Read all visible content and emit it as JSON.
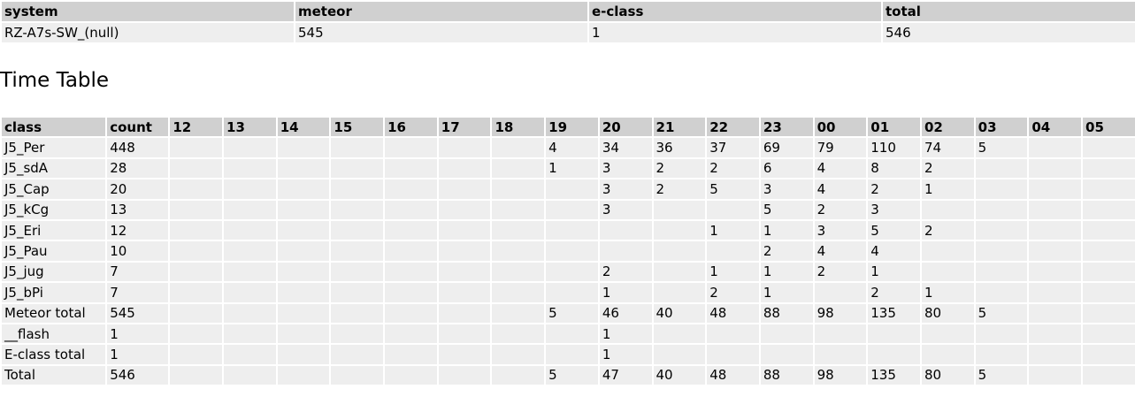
{
  "summary": {
    "header": [
      "system",
      "meteor",
      "e-class",
      "total"
    ],
    "rows": [
      [
        "RZ-A7s-SW_(null)",
        545,
        1,
        546
      ]
    ]
  },
  "title": "Time Table",
  "table": {
    "header": [
      "class",
      "count",
      "12",
      "13",
      "14",
      "15",
      "16",
      "17",
      "18",
      "19",
      "20",
      "21",
      "22",
      "23",
      "00",
      "01",
      "02",
      "03",
      "04",
      "05"
    ],
    "rows": [
      [
        "J5_Per",
        448,
        null,
        null,
        null,
        null,
        null,
        null,
        null,
        4,
        34,
        36,
        37,
        69,
        79,
        110,
        74,
        5,
        null,
        null
      ],
      [
        "J5_sdA",
        28,
        null,
        null,
        null,
        null,
        null,
        null,
        null,
        1,
        3,
        2,
        2,
        6,
        4,
        8,
        2,
        null,
        null,
        null
      ],
      [
        "J5_Cap",
        20,
        null,
        null,
        null,
        null,
        null,
        null,
        null,
        null,
        3,
        2,
        5,
        3,
        4,
        2,
        1,
        null,
        null,
        null
      ],
      [
        "J5_kCg",
        13,
        null,
        null,
        null,
        null,
        null,
        null,
        null,
        null,
        3,
        null,
        null,
        5,
        2,
        3,
        null,
        null,
        null,
        null
      ],
      [
        "J5_Eri",
        12,
        null,
        null,
        null,
        null,
        null,
        null,
        null,
        null,
        null,
        null,
        1,
        1,
        3,
        5,
        2,
        null,
        null,
        null
      ],
      [
        "J5_Pau",
        10,
        null,
        null,
        null,
        null,
        null,
        null,
        null,
        null,
        null,
        null,
        null,
        2,
        4,
        4,
        null,
        null,
        null,
        null
      ],
      [
        "J5_jug",
        7,
        null,
        null,
        null,
        null,
        null,
        null,
        null,
        null,
        2,
        null,
        1,
        1,
        2,
        1,
        null,
        null,
        null,
        null
      ],
      [
        "J5_bPi",
        7,
        null,
        null,
        null,
        null,
        null,
        null,
        null,
        null,
        1,
        null,
        2,
        1,
        null,
        2,
        1,
        null,
        null,
        null
      ],
      [
        "Meteor total",
        545,
        null,
        null,
        null,
        null,
        null,
        null,
        null,
        5,
        46,
        40,
        48,
        88,
        98,
        135,
        80,
        5,
        null,
        null
      ],
      [
        "__flash",
        1,
        null,
        null,
        null,
        null,
        null,
        null,
        null,
        null,
        1,
        null,
        null,
        null,
        null,
        null,
        null,
        null,
        null,
        null
      ],
      [
        "E-class total",
        1,
        null,
        null,
        null,
        null,
        null,
        null,
        null,
        null,
        1,
        null,
        null,
        null,
        null,
        null,
        null,
        null,
        null,
        null
      ],
      [
        "Total",
        546,
        null,
        null,
        null,
        null,
        null,
        null,
        null,
        5,
        47,
        40,
        48,
        88,
        98,
        135,
        80,
        5,
        null,
        null
      ]
    ]
  }
}
